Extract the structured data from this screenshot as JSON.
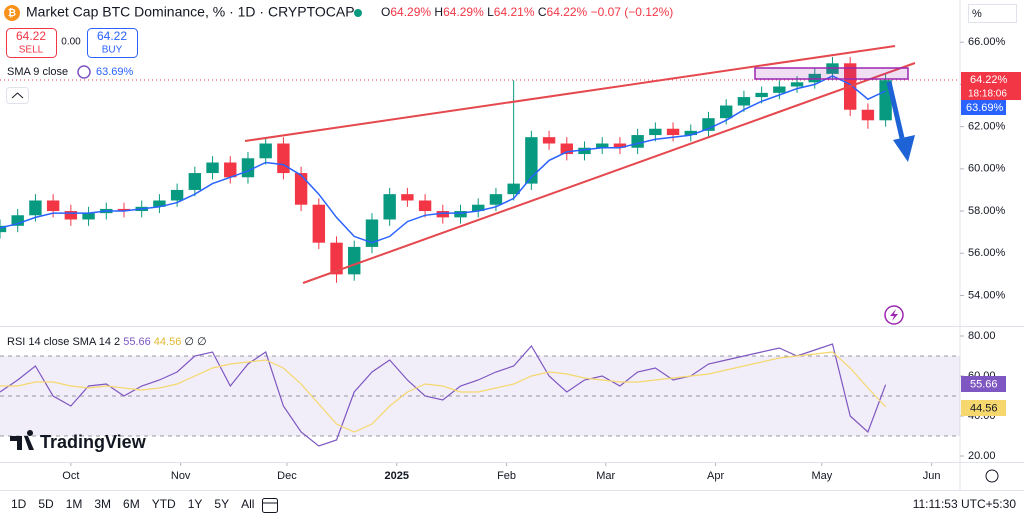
{
  "ui": {
    "title": "Market Cap BTC Dominance, % · 1D · CRYPTOCAP",
    "ohlc": [
      {
        "label": "O",
        "value": "64.29%"
      },
      {
        "label": "H",
        "value": "64.29%"
      },
      {
        "label": "L",
        "value": "64.21%"
      },
      {
        "label": "C",
        "value": "64.22%"
      }
    ],
    "change": "−0.07 (−0.12%)",
    "sell_price": "64.22",
    "sell": "SELL",
    "spread": "0.00",
    "buy_price": "64.22",
    "buy": "BUY",
    "sma_value": "63.69%",
    "price_label": "64.22%",
    "countdown": "18:18:06",
    "sma_axis_label": "63.69%",
    "rsi_value": "55.66",
    "rsi_sma_value": "44.56",
    "rsi_extra": "∅ ∅",
    "rsi_axis_label": "55.66",
    "rsi_sma_axis_label": "44.56",
    "scale_mode": "%",
    "logo": "TradingView",
    "ranges": [
      "1D",
      "5D",
      "1M",
      "3M",
      "6M",
      "YTD",
      "1Y",
      "5Y",
      "All"
    ],
    "clock": "11:11:53 UTC+5:30"
  },
  "chart_data": [
    {
      "type": "candlestick",
      "x": [
        -20,
        -15,
        -10,
        -5,
        0,
        5,
        10,
        15,
        20,
        25,
        30,
        35,
        40,
        45,
        50,
        55,
        60,
        65,
        70,
        75,
        80,
        85,
        90,
        95,
        100,
        105,
        110,
        115,
        120,
        125,
        130,
        135,
        140,
        145,
        150,
        155,
        160,
        165,
        170,
        175,
        180,
        185,
        190,
        195,
        200,
        205,
        210,
        215,
        220,
        225,
        230
      ],
      "open": [
        57.0,
        57.3,
        57.8,
        58.5,
        58.0,
        57.6,
        57.9,
        58.1,
        58.0,
        58.2,
        58.5,
        59.0,
        59.8,
        60.3,
        59.6,
        60.5,
        61.2,
        59.8,
        58.3,
        56.5,
        55.0,
        56.3,
        57.6,
        58.8,
        58.5,
        58.0,
        57.7,
        58.0,
        58.3,
        58.8,
        59.3,
        61.5,
        61.2,
        60.7,
        61.0,
        61.2,
        61.0,
        61.6,
        61.9,
        61.6,
        61.8,
        62.4,
        63.0,
        63.4,
        63.6,
        63.9,
        64.1,
        64.5,
        65.0,
        62.8,
        62.3
      ],
      "high": [
        57.6,
        58.1,
        58.8,
        58.8,
        58.3,
        58.2,
        58.4,
        58.4,
        58.5,
        58.8,
        59.3,
        60.1,
        60.6,
        60.6,
        60.8,
        61.5,
        61.5,
        60.1,
        58.6,
        56.8,
        56.6,
        57.9,
        59.1,
        59.1,
        58.8,
        58.3,
        58.3,
        58.6,
        59.1,
        64.2,
        61.8,
        61.8,
        61.5,
        61.3,
        61.5,
        61.5,
        61.9,
        62.2,
        62.2,
        62.1,
        62.7,
        63.3,
        63.7,
        63.9,
        64.2,
        64.4,
        64.8,
        65.3,
        65.3,
        63.1,
        64.5
      ],
      "low": [
        56.7,
        57.0,
        57.5,
        57.7,
        57.3,
        57.3,
        57.6,
        57.7,
        57.7,
        57.9,
        58.2,
        58.7,
        59.5,
        59.3,
        59.3,
        60.2,
        59.5,
        58.0,
        56.2,
        54.6,
        54.7,
        56.0,
        57.3,
        58.2,
        57.7,
        57.4,
        57.4,
        57.7,
        58.0,
        58.5,
        59.0,
        60.9,
        60.4,
        60.4,
        60.7,
        60.7,
        60.7,
        61.3,
        61.3,
        61.3,
        61.5,
        62.1,
        62.7,
        63.1,
        63.3,
        63.6,
        63.8,
        64.2,
        62.5,
        61.9,
        62.0
      ],
      "close": [
        57.3,
        57.8,
        58.5,
        58.0,
        57.6,
        57.9,
        58.1,
        58.0,
        58.2,
        58.5,
        59.0,
        59.8,
        60.3,
        59.6,
        60.5,
        61.2,
        59.8,
        58.3,
        56.5,
        55.0,
        56.3,
        57.6,
        58.8,
        58.5,
        58.0,
        57.7,
        58.0,
        58.3,
        58.8,
        59.3,
        61.5,
        61.2,
        60.7,
        61.0,
        61.2,
        61.0,
        61.6,
        61.9,
        61.6,
        61.8,
        62.4,
        63.0,
        63.4,
        63.6,
        63.9,
        64.1,
        64.5,
        65.0,
        62.8,
        62.3,
        64.2
      ],
      "up_color": "#089981",
      "down_color": "#f23645",
      "overlays": [
        {
          "name": "SMA 9 close",
          "color": "#2962ff",
          "values": [
            57.2,
            57.4,
            57.7,
            57.9,
            57.9,
            57.9,
            58.0,
            58.0,
            58.1,
            58.2,
            58.4,
            58.8,
            59.3,
            59.6,
            59.9,
            60.3,
            60.2,
            59.7,
            58.8,
            57.7,
            56.8,
            56.5,
            56.8,
            57.5,
            57.8,
            57.9,
            57.9,
            58.0,
            58.2,
            58.6,
            59.6,
            60.4,
            60.8,
            60.9,
            61.0,
            61.0,
            61.2,
            61.4,
            61.5,
            61.6,
            61.9,
            62.3,
            62.8,
            63.2,
            63.5,
            63.8,
            64.0,
            64.4,
            64.0,
            63.3,
            63.69
          ]
        }
      ],
      "xlim": [
        -20,
        251
      ],
      "xticks": [
        {
          "value": 0,
          "label": "Oct"
        },
        {
          "value": 31,
          "label": "Nov"
        },
        {
          "value": 61,
          "label": "Dec"
        },
        {
          "value": 92,
          "label": "2025"
        },
        {
          "value": 123,
          "label": "Feb"
        },
        {
          "value": 151,
          "label": "Mar"
        },
        {
          "value": 182,
          "label": "Apr"
        },
        {
          "value": 212,
          "label": "May"
        },
        {
          "value": 243,
          "label": "Jun"
        }
      ],
      "ylim": [
        52.6,
        68.0
      ],
      "yticks": [
        {
          "value": 54,
          "label": "54.00%"
        },
        {
          "value": 56,
          "label": "56.00%"
        },
        {
          "value": 58,
          "label": "58.00%"
        },
        {
          "value": 60,
          "label": "60.00%"
        },
        {
          "value": 62,
          "label": "62.00%"
        },
        {
          "value": 64,
          "label": "64.00%"
        },
        {
          "value": 66,
          "label": "66.00%"
        }
      ],
      "grid": false
    },
    {
      "type": "line",
      "x": [
        -20,
        -15,
        -10,
        -5,
        0,
        5,
        10,
        15,
        20,
        25,
        30,
        35,
        40,
        45,
        50,
        55,
        60,
        65,
        70,
        75,
        80,
        85,
        90,
        95,
        100,
        105,
        110,
        115,
        120,
        125,
        130,
        135,
        140,
        145,
        150,
        155,
        160,
        165,
        170,
        175,
        180,
        185,
        190,
        195,
        200,
        205,
        210,
        215,
        220,
        225,
        230
      ],
      "series": [
        {
          "name": "RSI 14 close",
          "color": "#7e57c2",
          "values": [
            52,
            58,
            65,
            50,
            45,
            55,
            56,
            50,
            55,
            58,
            62,
            70,
            72,
            55,
            66,
            72,
            45,
            32,
            25,
            28,
            52,
            62,
            68,
            58,
            50,
            48,
            55,
            58,
            62,
            65,
            75,
            60,
            52,
            58,
            60,
            55,
            62,
            64,
            58,
            60,
            66,
            68,
            70,
            72,
            74,
            70,
            73,
            76,
            40,
            32,
            55.66
          ]
        },
        {
          "name": "SMA 14 2",
          "color": "#f5d76e",
          "values": [
            55,
            55,
            57,
            57,
            55,
            54,
            55,
            54,
            53,
            54,
            56,
            60,
            64,
            66,
            67,
            68,
            64,
            56,
            46,
            36,
            32,
            36,
            45,
            52,
            56,
            55,
            52,
            52,
            54,
            56,
            60,
            62,
            61,
            59,
            58,
            57,
            57,
            58,
            59,
            60,
            61,
            63,
            65,
            67,
            69,
            70,
            71,
            72,
            64,
            54,
            44.56
          ]
        }
      ],
      "levels": [
        70,
        50,
        30
      ],
      "xlim": [
        -20,
        251
      ],
      "ylim": [
        17,
        84
      ],
      "yticks": [
        {
          "value": 20,
          "label": "20.00"
        },
        {
          "value": 40,
          "label": "40.00"
        },
        {
          "value": 60,
          "label": "60.00"
        },
        {
          "value": 80,
          "label": "80.00"
        }
      ]
    }
  ]
}
